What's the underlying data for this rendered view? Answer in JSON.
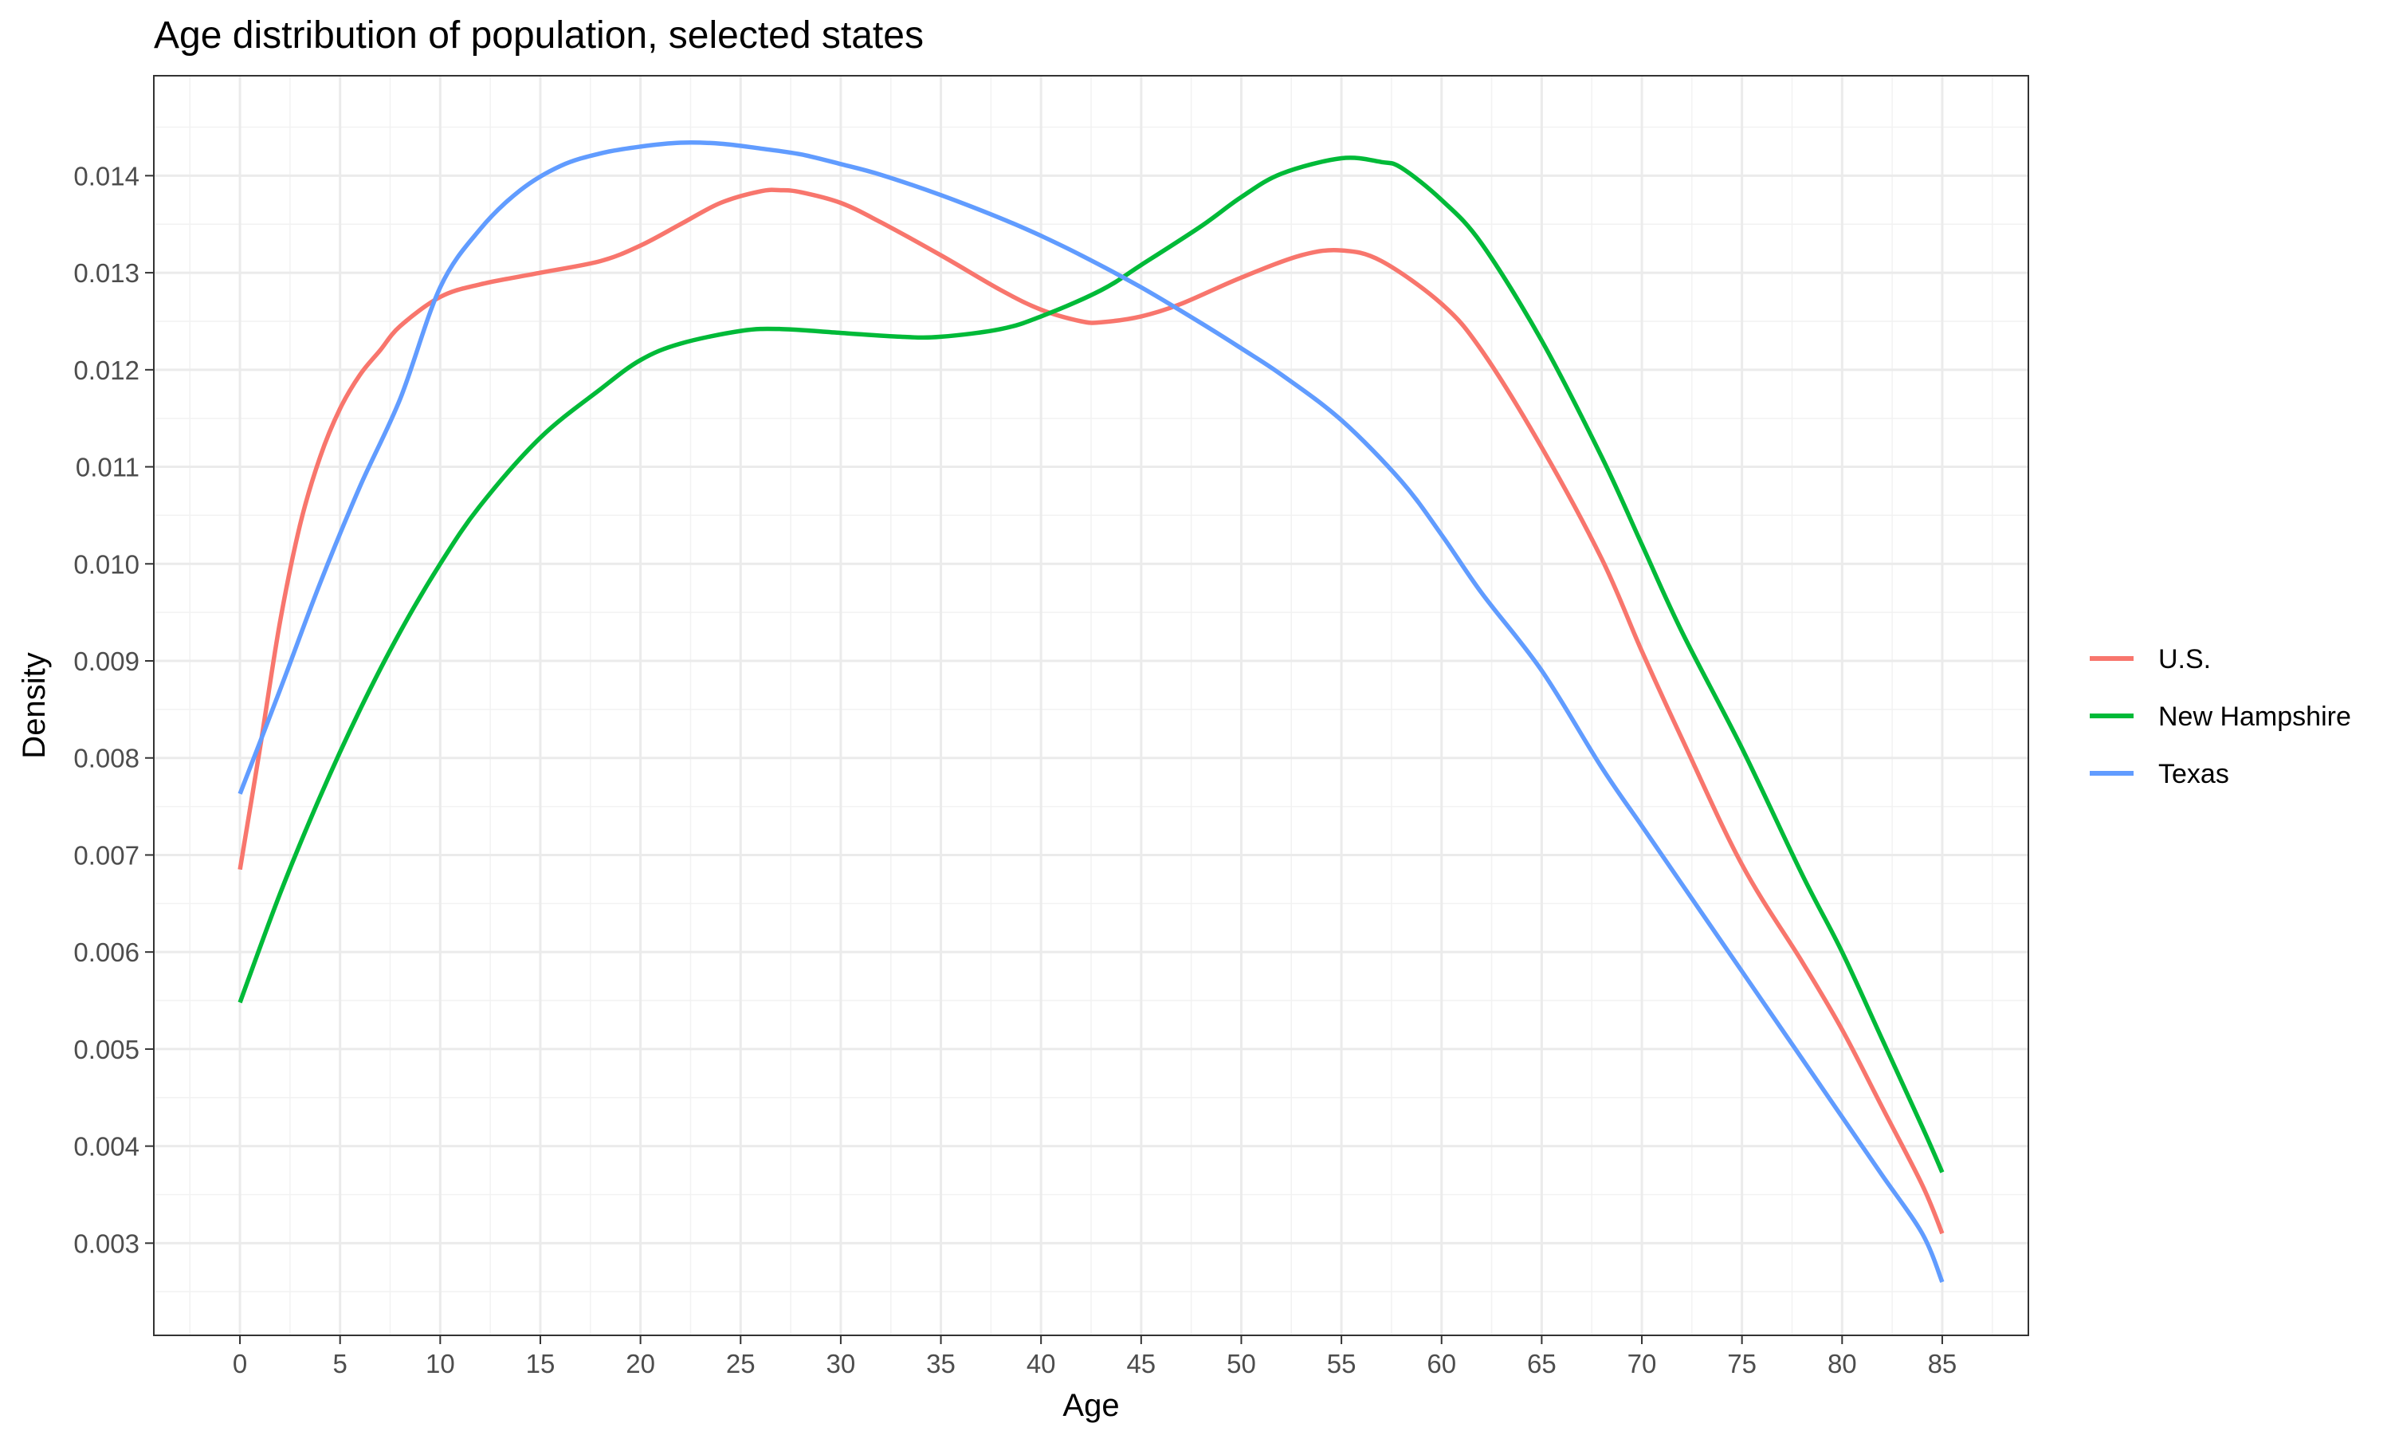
{
  "chart_data": {
    "type": "line",
    "title": "Age distribution of population, selected states",
    "xlabel": "Age",
    "ylabel": "Density",
    "xlim": [
      -4.3,
      89.3
    ],
    "ylim": [
      0.00205,
      0.01503
    ],
    "x_ticks": [
      0,
      5,
      10,
      15,
      20,
      25,
      30,
      35,
      40,
      45,
      50,
      55,
      60,
      65,
      70,
      75,
      80,
      85
    ],
    "y_ticks": [
      0.003,
      0.004,
      0.005,
      0.006,
      0.007,
      0.008,
      0.009,
      0.01,
      0.011,
      0.012,
      0.013,
      0.014
    ],
    "y_tick_labels": [
      "0.003",
      "0.004",
      "0.005",
      "0.006",
      "0.007",
      "0.008",
      "0.009",
      "0.010",
      "0.011",
      "0.012",
      "0.013",
      "0.014"
    ],
    "grid": true,
    "legend_position": "right",
    "series": [
      {
        "name": "U.S.",
        "color": "#F8766D",
        "points": [
          [
            0,
            0.00685
          ],
          [
            1,
            0.0081
          ],
          [
            2,
            0.0094
          ],
          [
            3,
            0.0104
          ],
          [
            4,
            0.0111
          ],
          [
            5,
            0.0116
          ],
          [
            6,
            0.01195
          ],
          [
            7,
            0.0122
          ],
          [
            8,
            0.01245
          ],
          [
            10,
            0.01275
          ],
          [
            12,
            0.01288
          ],
          [
            15,
            0.013
          ],
          [
            18,
            0.01312
          ],
          [
            20,
            0.01328
          ],
          [
            22,
            0.0135
          ],
          [
            24,
            0.01372
          ],
          [
            26,
            0.01384
          ],
          [
            27,
            0.01385
          ],
          [
            28,
            0.01383
          ],
          [
            30,
            0.01372
          ],
          [
            32,
            0.01352
          ],
          [
            35,
            0.01318
          ],
          [
            38,
            0.01282
          ],
          [
            40,
            0.01262
          ],
          [
            42,
            0.0125
          ],
          [
            43,
            0.01249
          ],
          [
            45,
            0.01255
          ],
          [
            47,
            0.01268
          ],
          [
            50,
            0.01295
          ],
          [
            53,
            0.01318
          ],
          [
            55,
            0.01323
          ],
          [
            57,
            0.01312
          ],
          [
            60,
            0.01268
          ],
          [
            62,
            0.0122
          ],
          [
            65,
            0.0112
          ],
          [
            68,
            0.01005
          ],
          [
            70,
            0.0091
          ],
          [
            72,
            0.0082
          ],
          [
            75,
            0.0069
          ],
          [
            78,
            0.0059
          ],
          [
            80,
            0.0052
          ],
          [
            82,
            0.0044
          ],
          [
            84,
            0.0036
          ],
          [
            85,
            0.0031
          ]
        ]
      },
      {
        "name": "New Hampshire",
        "color": "#00BA38",
        "points": [
          [
            0,
            0.00548
          ],
          [
            2,
            0.0066
          ],
          [
            4,
            0.0076
          ],
          [
            6,
            0.0085
          ],
          [
            8,
            0.0093
          ],
          [
            10,
            0.01
          ],
          [
            12,
            0.0106
          ],
          [
            15,
            0.0113
          ],
          [
            18,
            0.0118
          ],
          [
            20,
            0.0121
          ],
          [
            22,
            0.01227
          ],
          [
            25,
            0.0124
          ],
          [
            27,
            0.01242
          ],
          [
            30,
            0.01238
          ],
          [
            33,
            0.01234
          ],
          [
            35,
            0.01234
          ],
          [
            38,
            0.01242
          ],
          [
            40,
            0.01255
          ],
          [
            43,
            0.01282
          ],
          [
            45,
            0.01308
          ],
          [
            48,
            0.01348
          ],
          [
            50,
            0.01378
          ],
          [
            52,
            0.01402
          ],
          [
            55,
            0.01418
          ],
          [
            57,
            0.01414
          ],
          [
            58,
            0.01408
          ],
          [
            60,
            0.01375
          ],
          [
            62,
            0.0133
          ],
          [
            65,
            0.0123
          ],
          [
            68,
            0.0111
          ],
          [
            70,
            0.0102
          ],
          [
            72,
            0.0093
          ],
          [
            75,
            0.0081
          ],
          [
            78,
            0.0068
          ],
          [
            80,
            0.006
          ],
          [
            82,
            0.0051
          ],
          [
            84,
            0.0042
          ],
          [
            85,
            0.00373
          ]
        ]
      },
      {
        "name": "Texas",
        "color": "#619CFF",
        "points": [
          [
            0,
            0.00763
          ],
          [
            2,
            0.0087
          ],
          [
            4,
            0.0098
          ],
          [
            6,
            0.0108
          ],
          [
            8,
            0.0117
          ],
          [
            10,
            0.01285
          ],
          [
            12,
            0.01345
          ],
          [
            14,
            0.01385
          ],
          [
            16,
            0.0141
          ],
          [
            18,
            0.01423
          ],
          [
            20,
            0.0143
          ],
          [
            22,
            0.01434
          ],
          [
            24,
            0.01433
          ],
          [
            26,
            0.01428
          ],
          [
            28,
            0.01422
          ],
          [
            30,
            0.01412
          ],
          [
            32,
            0.01401
          ],
          [
            35,
            0.0138
          ],
          [
            38,
            0.01356
          ],
          [
            40,
            0.01338
          ],
          [
            42,
            0.01318
          ],
          [
            45,
            0.01285
          ],
          [
            48,
            0.01248
          ],
          [
            50,
            0.01222
          ],
          [
            52,
            0.01195
          ],
          [
            55,
            0.01148
          ],
          [
            58,
            0.01085
          ],
          [
            60,
            0.0103
          ],
          [
            62,
            0.0097
          ],
          [
            65,
            0.0089
          ],
          [
            68,
            0.0079
          ],
          [
            70,
            0.0073
          ],
          [
            72,
            0.0067
          ],
          [
            75,
            0.0058
          ],
          [
            78,
            0.0049
          ],
          [
            80,
            0.0043
          ],
          [
            82,
            0.0037
          ],
          [
            84,
            0.0031
          ],
          [
            85,
            0.0026
          ]
        ]
      }
    ]
  }
}
